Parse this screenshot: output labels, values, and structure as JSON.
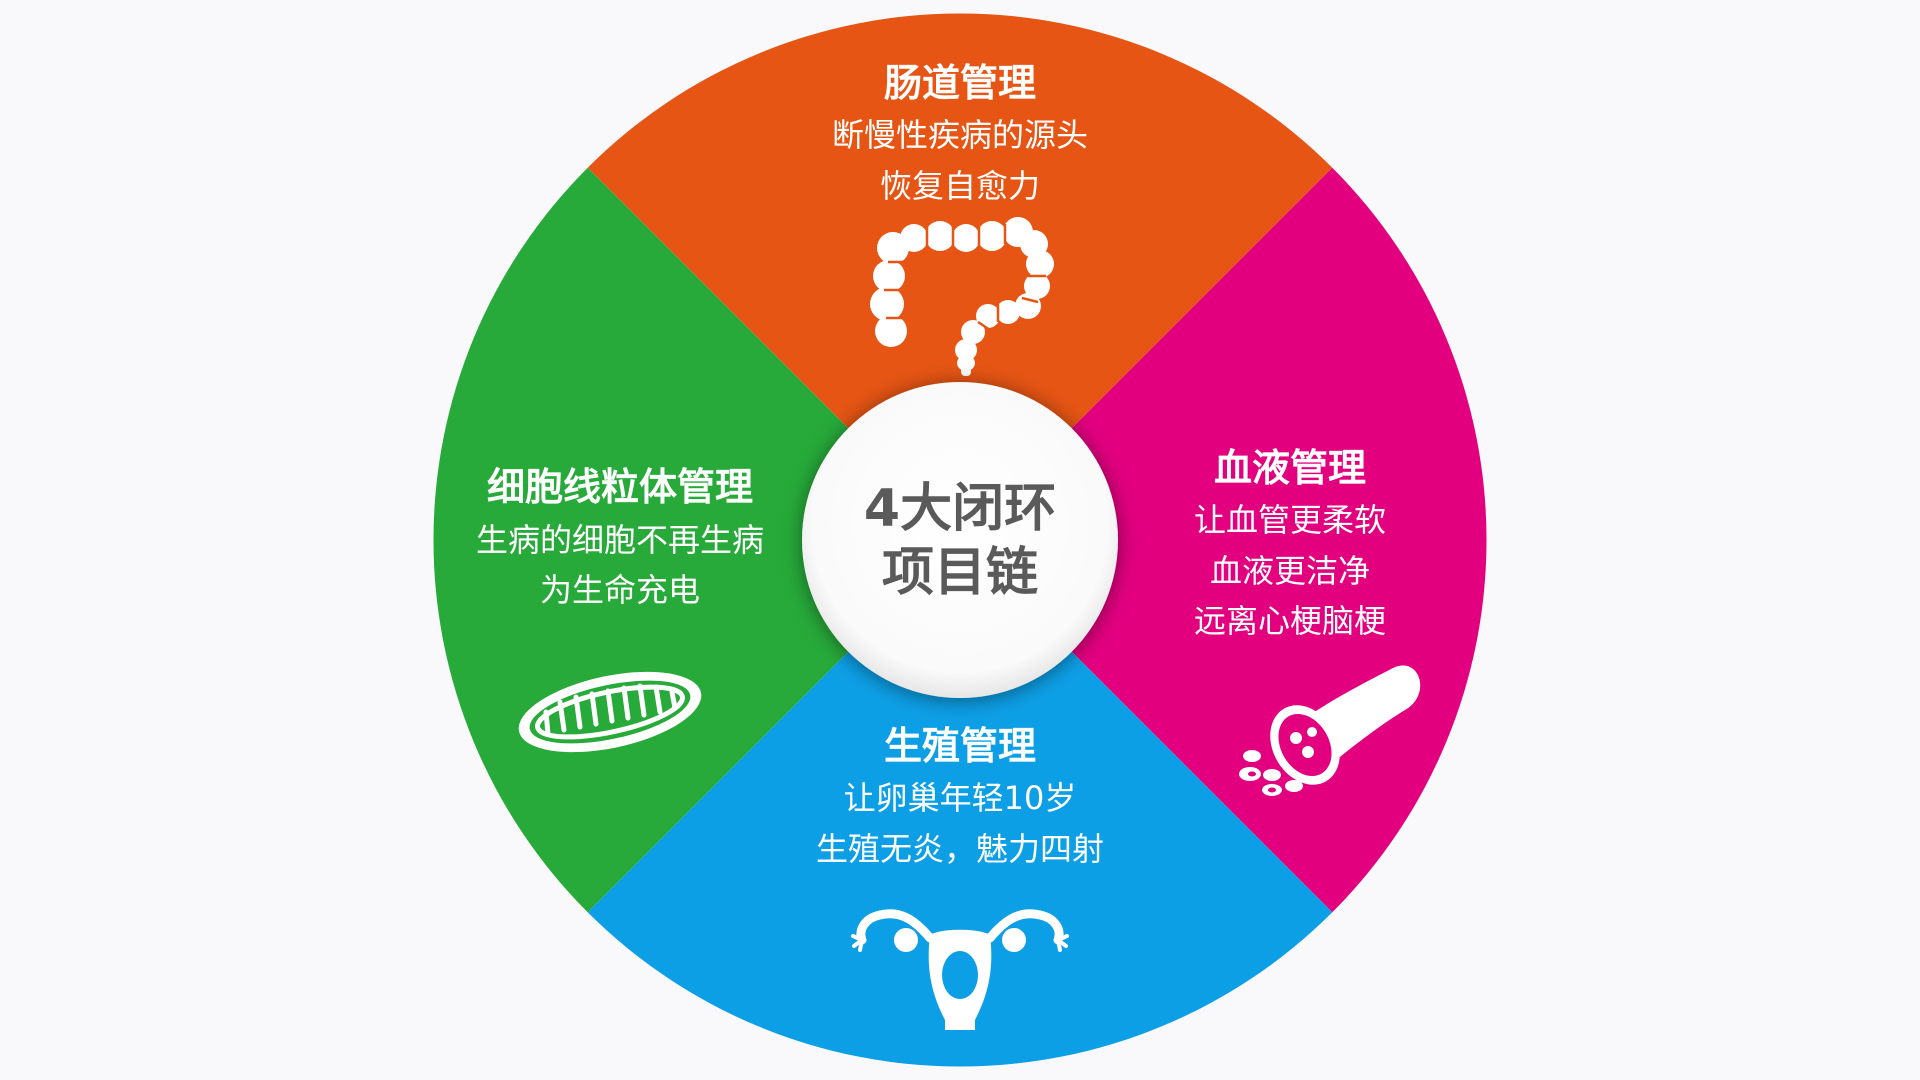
{
  "center": {
    "line1": "4大闭环",
    "line2": "项目链"
  },
  "segments": {
    "top": {
      "title": "肠道管理",
      "lines": [
        "断慢性疾病的源头",
        "恢复自愈力"
      ],
      "color": "#e65514",
      "icon": "intestine-icon"
    },
    "right": {
      "title": "血液管理",
      "lines": [
        "让血管更柔软",
        "血液更洁净",
        "远离心梗脑梗"
      ],
      "color": "#e2007f",
      "icon": "blood-vessel-icon"
    },
    "bottom": {
      "title": "生殖管理",
      "lines": [
        "让卵巢年轻10岁",
        "生殖无炎，魅力四射"
      ],
      "color": "#0d9fe6",
      "icon": "uterus-icon"
    },
    "left": {
      "title": "细胞线粒体管理",
      "lines": [
        "生病的细胞不再生病",
        "为生命充电"
      ],
      "color": "#27aa3a",
      "icon": "mitochondria-icon"
    }
  }
}
